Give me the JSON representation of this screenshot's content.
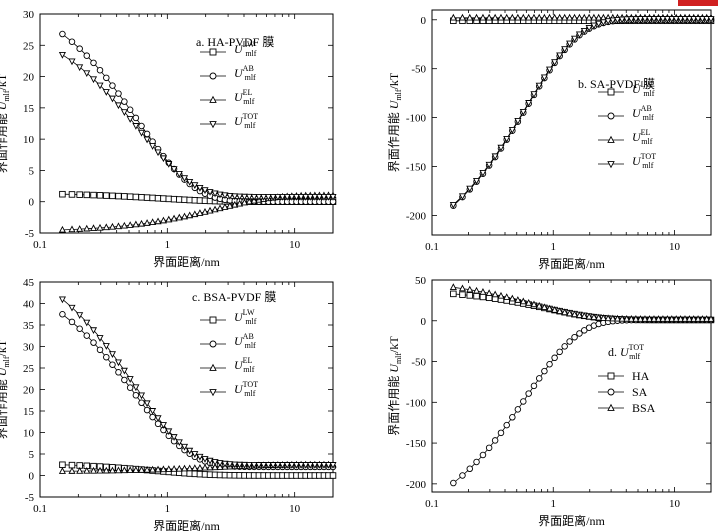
{
  "figure": {
    "corner_mark_color": "#d02020"
  },
  "chart_data": [
    {
      "type": "line",
      "title": "a. HA-PVDF 膜",
      "xlabel": "界面距离/nm",
      "ylabel": "界面作用能 U_mlf/kT",
      "ylabel_parts": [
        "界面作用能 ",
        "U",
        "mlf",
        "/kT"
      ],
      "xscale": "log",
      "xlim": [
        0.1,
        20
      ],
      "ylim": [
        -5,
        30
      ],
      "xticks": [
        0.1,
        1,
        10
      ],
      "xticklabels": [
        "0.1",
        "1",
        "10"
      ],
      "yticks": [
        -5,
        0,
        5,
        10,
        15,
        20,
        25,
        30
      ],
      "legend_position": "upper-middle",
      "series": [
        {
          "name": "U_mlf^LW",
          "main": "U",
          "sub": "mlf",
          "sup": "LW",
          "marker": "square",
          "fn": "exp",
          "p": [
            1.2,
            0.15,
            0.9,
            20
          ]
        },
        {
          "name": "U_mlf^AB",
          "main": "U",
          "sub": "mlf",
          "sup": "AB",
          "marker": "circle",
          "fn": "exp",
          "p": [
            26.8,
            0.15,
            0.6,
            20
          ]
        },
        {
          "name": "U_mlf^EL",
          "main": "U",
          "sub": "mlf",
          "sup": "EL",
          "marker": "triangle-up",
          "fn": "exp",
          "p": [
            -4.5,
            0.15,
            2.5,
            20,
            1.0
          ]
        },
        {
          "name": "U_mlf^TOT",
          "main": "U",
          "sub": "mlf",
          "sup": "TOT",
          "marker": "triangle-down",
          "fn": "exp",
          "p": [
            23.5,
            0.15,
            0.6,
            20,
            0.8
          ]
        }
      ]
    },
    {
      "type": "line",
      "title": "b. SA-PVDF 膜",
      "xlabel": "界面距离/nm",
      "ylabel": "界面作用能 U_mlf/kT",
      "ylabel_parts": [
        "界面作用能 ",
        "U",
        "mlf",
        "/kT"
      ],
      "xscale": "log",
      "xlim": [
        0.1,
        20
      ],
      "ylim": [
        -220,
        10
      ],
      "xticks": [
        0.1,
        1,
        10
      ],
      "xticklabels": [
        "0.1",
        "1",
        "10"
      ],
      "yticks": [
        -200,
        -150,
        -100,
        -50,
        0
      ],
      "legend_position": "middle-right",
      "series": [
        {
          "name": "U_mlf^LW",
          "main": "U",
          "sub": "mlf",
          "sup": "LW",
          "marker": "square",
          "fn": "flat",
          "p": [
            -1,
            0.15,
            20
          ]
        },
        {
          "name": "U_mlf^AB",
          "main": "U",
          "sub": "mlf",
          "sup": "AB",
          "marker": "circle",
          "fn": "exp",
          "p": [
            -190,
            0.15,
            0.6,
            20,
            0
          ]
        },
        {
          "name": "U_mlf^EL",
          "main": "U",
          "sub": "mlf",
          "sup": "EL",
          "marker": "triangle-up",
          "fn": "flat",
          "p": [
            2,
            0.15,
            20
          ]
        },
        {
          "name": "U_mlf^TOT",
          "main": "U",
          "sub": "mlf",
          "sup": "TOT",
          "marker": "triangle-down",
          "fn": "exp",
          "p": [
            -189,
            0.15,
            0.6,
            20,
            1
          ]
        }
      ]
    },
    {
      "type": "line",
      "title": "c. BSA-PVDF 膜",
      "xlabel": "界面距离/nm",
      "ylabel": "界面作用能 U_mlf/kT",
      "ylabel_parts": [
        "界面作用能 ",
        "U",
        "mlf",
        "/kT"
      ],
      "xscale": "log",
      "xlim": [
        0.1,
        20
      ],
      "ylim": [
        -5,
        45
      ],
      "xticks": [
        0.1,
        1,
        10
      ],
      "xticklabels": [
        "0.1",
        "1",
        "10"
      ],
      "yticks": [
        -5,
        0,
        5,
        10,
        15,
        20,
        25,
        30,
        35,
        40,
        45
      ],
      "legend_position": "upper-middle",
      "series": [
        {
          "name": "U_mlf^LW",
          "main": "U",
          "sub": "mlf",
          "sup": "LW",
          "marker": "square",
          "fn": "exp",
          "p": [
            2.5,
            0.15,
            0.8,
            20,
            0
          ]
        },
        {
          "name": "U_mlf^AB",
          "main": "U",
          "sub": "mlf",
          "sup": "AB",
          "marker": "circle",
          "fn": "exp",
          "p": [
            37.5,
            0.15,
            0.55,
            20,
            2.0
          ]
        },
        {
          "name": "U_mlf^EL",
          "main": "U",
          "sub": "mlf",
          "sup": "EL",
          "marker": "triangle-up",
          "fn": "exp",
          "p": [
            1.0,
            0.15,
            2.5,
            20,
            2.5
          ]
        },
        {
          "name": "U_mlf^TOT",
          "main": "U",
          "sub": "mlf",
          "sup": "TOT",
          "marker": "triangle-down",
          "fn": "exp",
          "p": [
            41.0,
            0.15,
            0.55,
            20,
            2.5
          ]
        }
      ]
    },
    {
      "type": "line",
      "title": "d. U_mlf^TOT",
      "title_parts": [
        "d. ",
        "U",
        "mlf",
        "TOT"
      ],
      "xlabel": "界面距离/nm",
      "ylabel": "界面作用能 U_mlf/kT",
      "ylabel_parts": [
        "界面作用能 ",
        "U",
        "mlf",
        "/kT"
      ],
      "xscale": "log",
      "xlim": [
        0.1,
        20
      ],
      "ylim": [
        -210,
        50
      ],
      "xticks": [
        0.1,
        1,
        10
      ],
      "xticklabels": [
        "0.1",
        "1",
        "10"
      ],
      "yticks": [
        -200,
        -150,
        -100,
        -50,
        0,
        50
      ],
      "legend_position": "middle-right",
      "series": [
        {
          "name": "HA",
          "label": "HA",
          "marker": "square",
          "fn": "exp",
          "p": [
            33,
            0.15,
            0.9,
            20,
            1
          ]
        },
        {
          "name": "SA",
          "label": "SA",
          "marker": "circle",
          "fn": "exp",
          "p": [
            -199,
            0.15,
            0.6,
            20,
            1
          ]
        },
        {
          "name": "BSA",
          "label": "BSA",
          "marker": "triangle-up",
          "fn": "exp",
          "p": [
            41,
            0.15,
            0.7,
            20,
            2
          ]
        }
      ]
    }
  ]
}
